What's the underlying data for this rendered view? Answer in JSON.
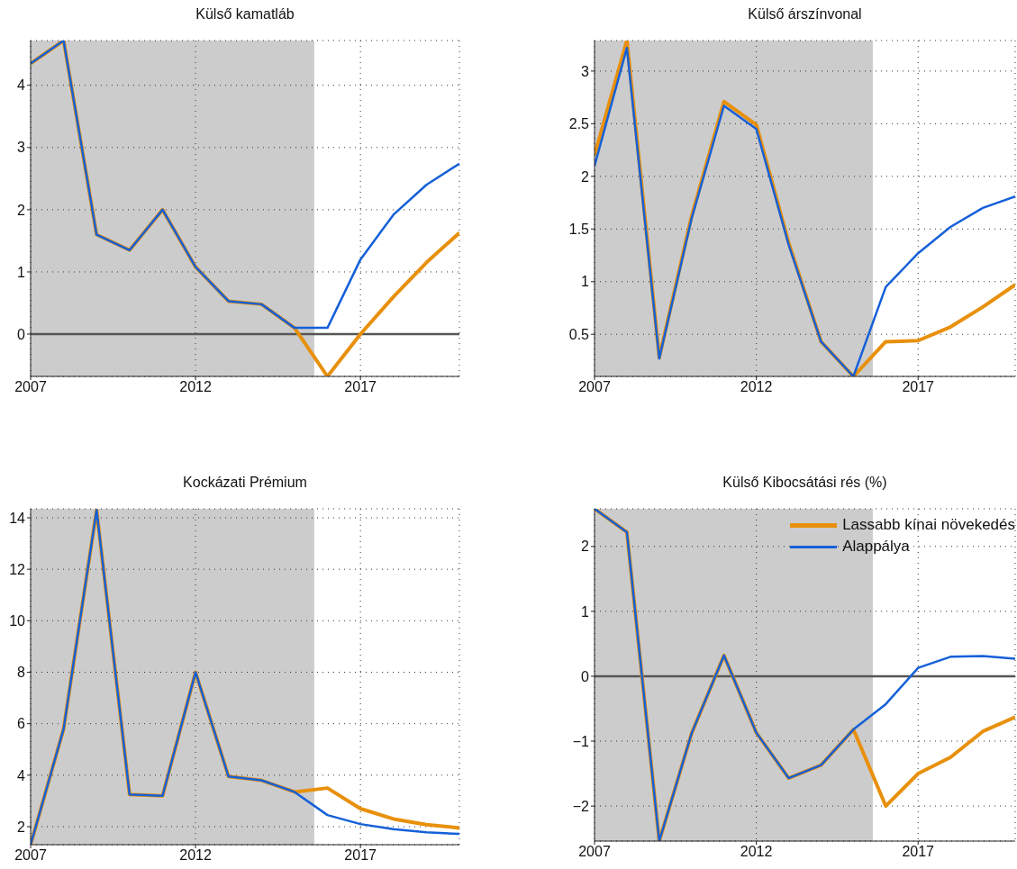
{
  "chart_data": [
    {
      "type": "line",
      "title": "Külső kamatláb",
      "x": [
        2007,
        2008,
        2009,
        2010,
        2011,
        2012,
        2013,
        2014,
        2015,
        2016,
        2017,
        2018,
        2019,
        2020
      ],
      "xlim": [
        2007,
        2020
      ],
      "xticks": [
        2007,
        2012,
        2017
      ],
      "ylim": [
        -0.68,
        4.72
      ],
      "yticks": [
        0,
        1,
        2,
        3,
        4
      ],
      "grid": true,
      "legend": false,
      "series": [
        {
          "color": "#e8900c",
          "values": [
            4.35,
            4.72,
            1.6,
            1.35,
            2.0,
            1.08,
            0.53,
            0.48,
            0.1,
            -0.68,
            0.0,
            0.6,
            1.15,
            1.63
          ]
        },
        {
          "color": "#1560d8",
          "values": [
            4.35,
            4.72,
            1.6,
            1.35,
            2.0,
            1.08,
            0.53,
            0.48,
            0.1,
            0.1,
            1.2,
            1.92,
            2.4,
            2.74
          ]
        }
      ],
      "ref_lines": [
        {
          "axis": "y",
          "value": 0,
          "color": "#555555"
        }
      ],
      "bands": [
        {
          "axis": "x",
          "from": 2007,
          "to": 2015.6,
          "color": "#cccccc"
        }
      ]
    },
    {
      "type": "line",
      "title": "Külső árszínvonal",
      "x": [
        2007,
        2008,
        2009,
        2010,
        2011,
        2012,
        2013,
        2014,
        2015,
        2016,
        2017,
        2018,
        2019,
        2020
      ],
      "xlim": [
        2007,
        2020
      ],
      "xticks": [
        2007,
        2012,
        2017
      ],
      "ylim": [
        0.1,
        3.29
      ],
      "yticks": [
        0.5,
        1,
        1.5,
        2,
        2.5,
        3
      ],
      "grid": true,
      "legend": false,
      "series": [
        {
          "color": "#e8900c",
          "values": [
            2.2,
            3.29,
            0.28,
            1.62,
            2.71,
            2.49,
            1.37,
            0.43,
            0.1,
            0.43,
            0.44,
            0.57,
            0.76,
            0.97
          ]
        },
        {
          "color": "#1560d8",
          "values": [
            2.1,
            3.22,
            0.27,
            1.6,
            2.67,
            2.45,
            1.35,
            0.43,
            0.1,
            0.95,
            1.27,
            1.52,
            1.7,
            1.81
          ]
        }
      ],
      "bands": [
        {
          "axis": "x",
          "from": 2007,
          "to": 2015.6,
          "color": "#cccccc"
        }
      ]
    },
    {
      "type": "line",
      "title": "Kockázati Prémium",
      "x": [
        2007,
        2008,
        2009,
        2010,
        2011,
        2012,
        2013,
        2014,
        2015,
        2016,
        2017,
        2018,
        2019,
        2020
      ],
      "xlim": [
        2007,
        2020
      ],
      "xticks": [
        2007,
        2012,
        2017
      ],
      "ylim": [
        1.3,
        14.35
      ],
      "yticks": [
        2,
        4,
        6,
        8,
        10,
        12,
        14
      ],
      "grid": true,
      "legend": false,
      "series": [
        {
          "color": "#e8900c",
          "values": [
            1.3,
            5.8,
            14.3,
            3.25,
            3.2,
            8.0,
            3.95,
            3.8,
            3.35,
            3.5,
            2.7,
            2.3,
            2.08,
            1.95
          ]
        },
        {
          "color": "#1560d8",
          "values": [
            1.3,
            5.8,
            14.3,
            3.25,
            3.2,
            8.0,
            3.95,
            3.8,
            3.35,
            2.45,
            2.1,
            1.9,
            1.78,
            1.72
          ]
        }
      ],
      "bands": [
        {
          "axis": "x",
          "from": 2007,
          "to": 2015.6,
          "color": "#cccccc"
        }
      ]
    },
    {
      "type": "line",
      "title": "Külső Kibocsátási rés (%)",
      "x": [
        2007,
        2008,
        2009,
        2010,
        2011,
        2012,
        2013,
        2014,
        2015,
        2016,
        2017,
        2018,
        2019,
        2020
      ],
      "xlim": [
        2007,
        2020
      ],
      "xticks": [
        2007,
        2012,
        2017
      ],
      "ylim": [
        -2.54,
        2.58
      ],
      "yticks": [
        {
          "value": -2,
          "label": "−2"
        },
        {
          "value": -1,
          "label": "−1"
        },
        0,
        1,
        2
      ],
      "grid": true,
      "legend": "top right",
      "series": [
        {
          "name": "Lassabb kínai növekedés",
          "color": "#e8900c",
          "values": [
            2.58,
            2.22,
            -2.54,
            -0.88,
            0.32,
            -0.87,
            -1.57,
            -1.37,
            -0.82,
            -2.0,
            -1.5,
            -1.25,
            -0.85,
            -0.63
          ]
        },
        {
          "name": "Alappálya",
          "color": "#1560d8",
          "values": [
            2.58,
            2.22,
            -2.54,
            -0.88,
            0.32,
            -0.87,
            -1.57,
            -1.37,
            -0.82,
            -0.43,
            0.13,
            0.3,
            0.31,
            0.27
          ]
        }
      ],
      "ref_lines": [
        {
          "axis": "y",
          "value": 0,
          "color": "#555555"
        }
      ],
      "bands": [
        {
          "axis": "x",
          "from": 2007,
          "to": 2015.6,
          "color": "#cccccc"
        }
      ]
    }
  ]
}
